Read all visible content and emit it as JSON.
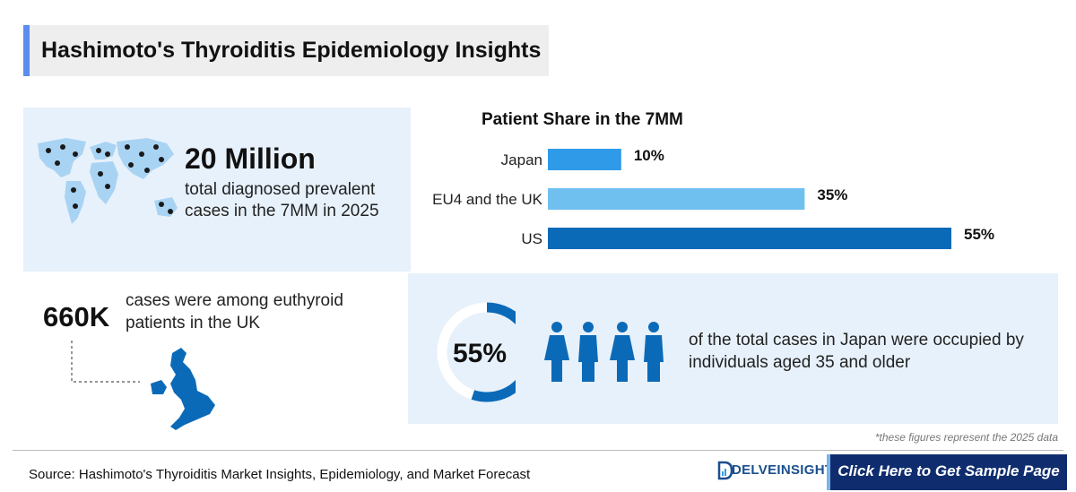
{
  "title": "Hashimoto's Thyroiditis Epidemiology Insights",
  "map_stat": {
    "value": "20 Million",
    "description": "total diagnosed prevalent cases in the 7MM in 2025"
  },
  "uk_stat": {
    "value": "660K",
    "description": "cases were among euthyroid patients in the UK"
  },
  "age_stat": {
    "value": "55%",
    "fraction": 0.55,
    "description": "of the total cases in Japan were occupied by individuals aged 35 and older"
  },
  "chart_data": {
    "type": "bar",
    "orientation": "horizontal",
    "title": "Patient Share in the 7MM",
    "categories": [
      "Japan",
      "EU4 and the UK",
      "US"
    ],
    "values": [
      10,
      35,
      55
    ],
    "value_labels": [
      "10%",
      "35%",
      "55%"
    ],
    "colors": [
      "#2f9be8",
      "#6fc0ef",
      "#0b6ab8"
    ],
    "xlim": [
      0,
      55
    ],
    "grid": false
  },
  "footnote": "*these figures represent the 2025 data",
  "source": "Source: Hashimoto's Thyroiditis Market Insights, Epidemiology, and Market Forecast",
  "brand": "DELVEINSIGHT",
  "cta_label": "Click Here to Get Sample Page",
  "colors": {
    "accent": "#5b8dee",
    "panel": "#e7f1fb",
    "brand_blue": "#0b6ab8",
    "cta_bg": "#0f2d6e"
  },
  "icons": [
    "world-map-icon",
    "uk-map-icon",
    "people-icon",
    "progress-ring-icon"
  ]
}
